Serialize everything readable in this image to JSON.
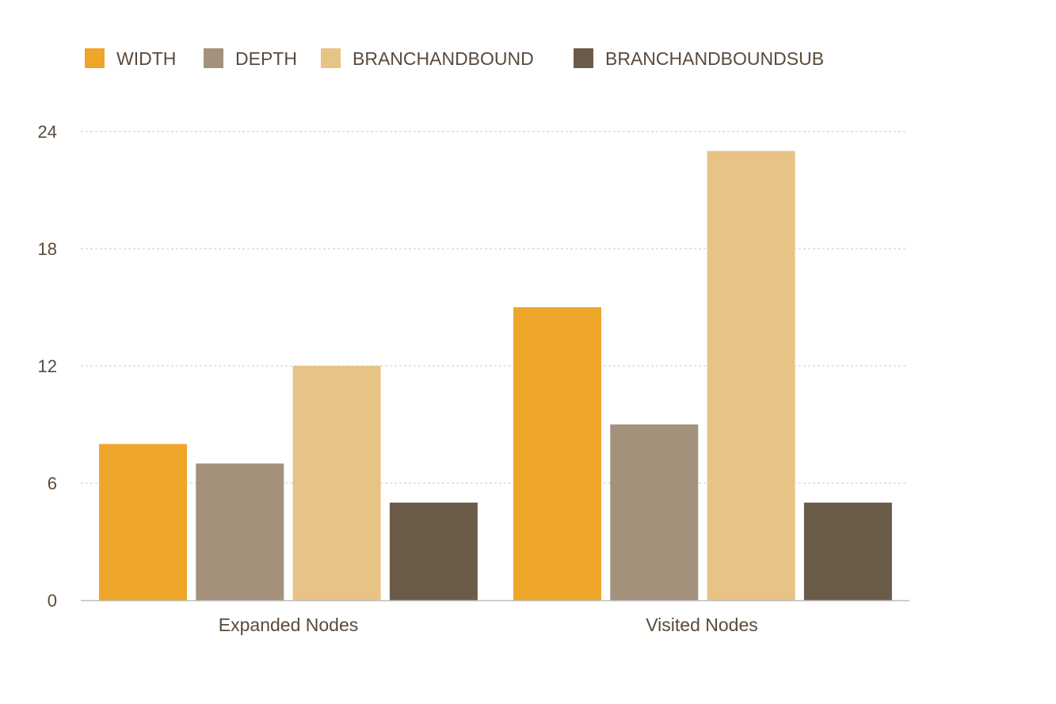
{
  "chart_data": {
    "type": "bar",
    "title": "",
    "xlabel": "",
    "ylabel": "",
    "categories": [
      "Expanded Nodes",
      "Visited Nodes"
    ],
    "series": [
      {
        "name": "WIDTH",
        "values": [
          8,
          15
        ],
        "color": "#eea62a"
      },
      {
        "name": "DEPTH",
        "values": [
          7,
          9
        ],
        "color": "#a3917c"
      },
      {
        "name": "BRANCHANDBOUND",
        "values": [
          12,
          23
        ],
        "color": "#e7c386"
      },
      {
        "name": "BRANCHANDBOUNDSUB",
        "values": [
          5,
          5
        ],
        "color": "#6b5b49"
      }
    ],
    "ylim": [
      0,
      24
    ],
    "yticks": [
      0,
      6,
      12,
      18,
      24
    ],
    "grid": true,
    "legend_position": "top-left",
    "colors": {
      "text": "#5a4a3a",
      "grid": "#c8c8c8",
      "axis": "#bdbdbd"
    }
  }
}
